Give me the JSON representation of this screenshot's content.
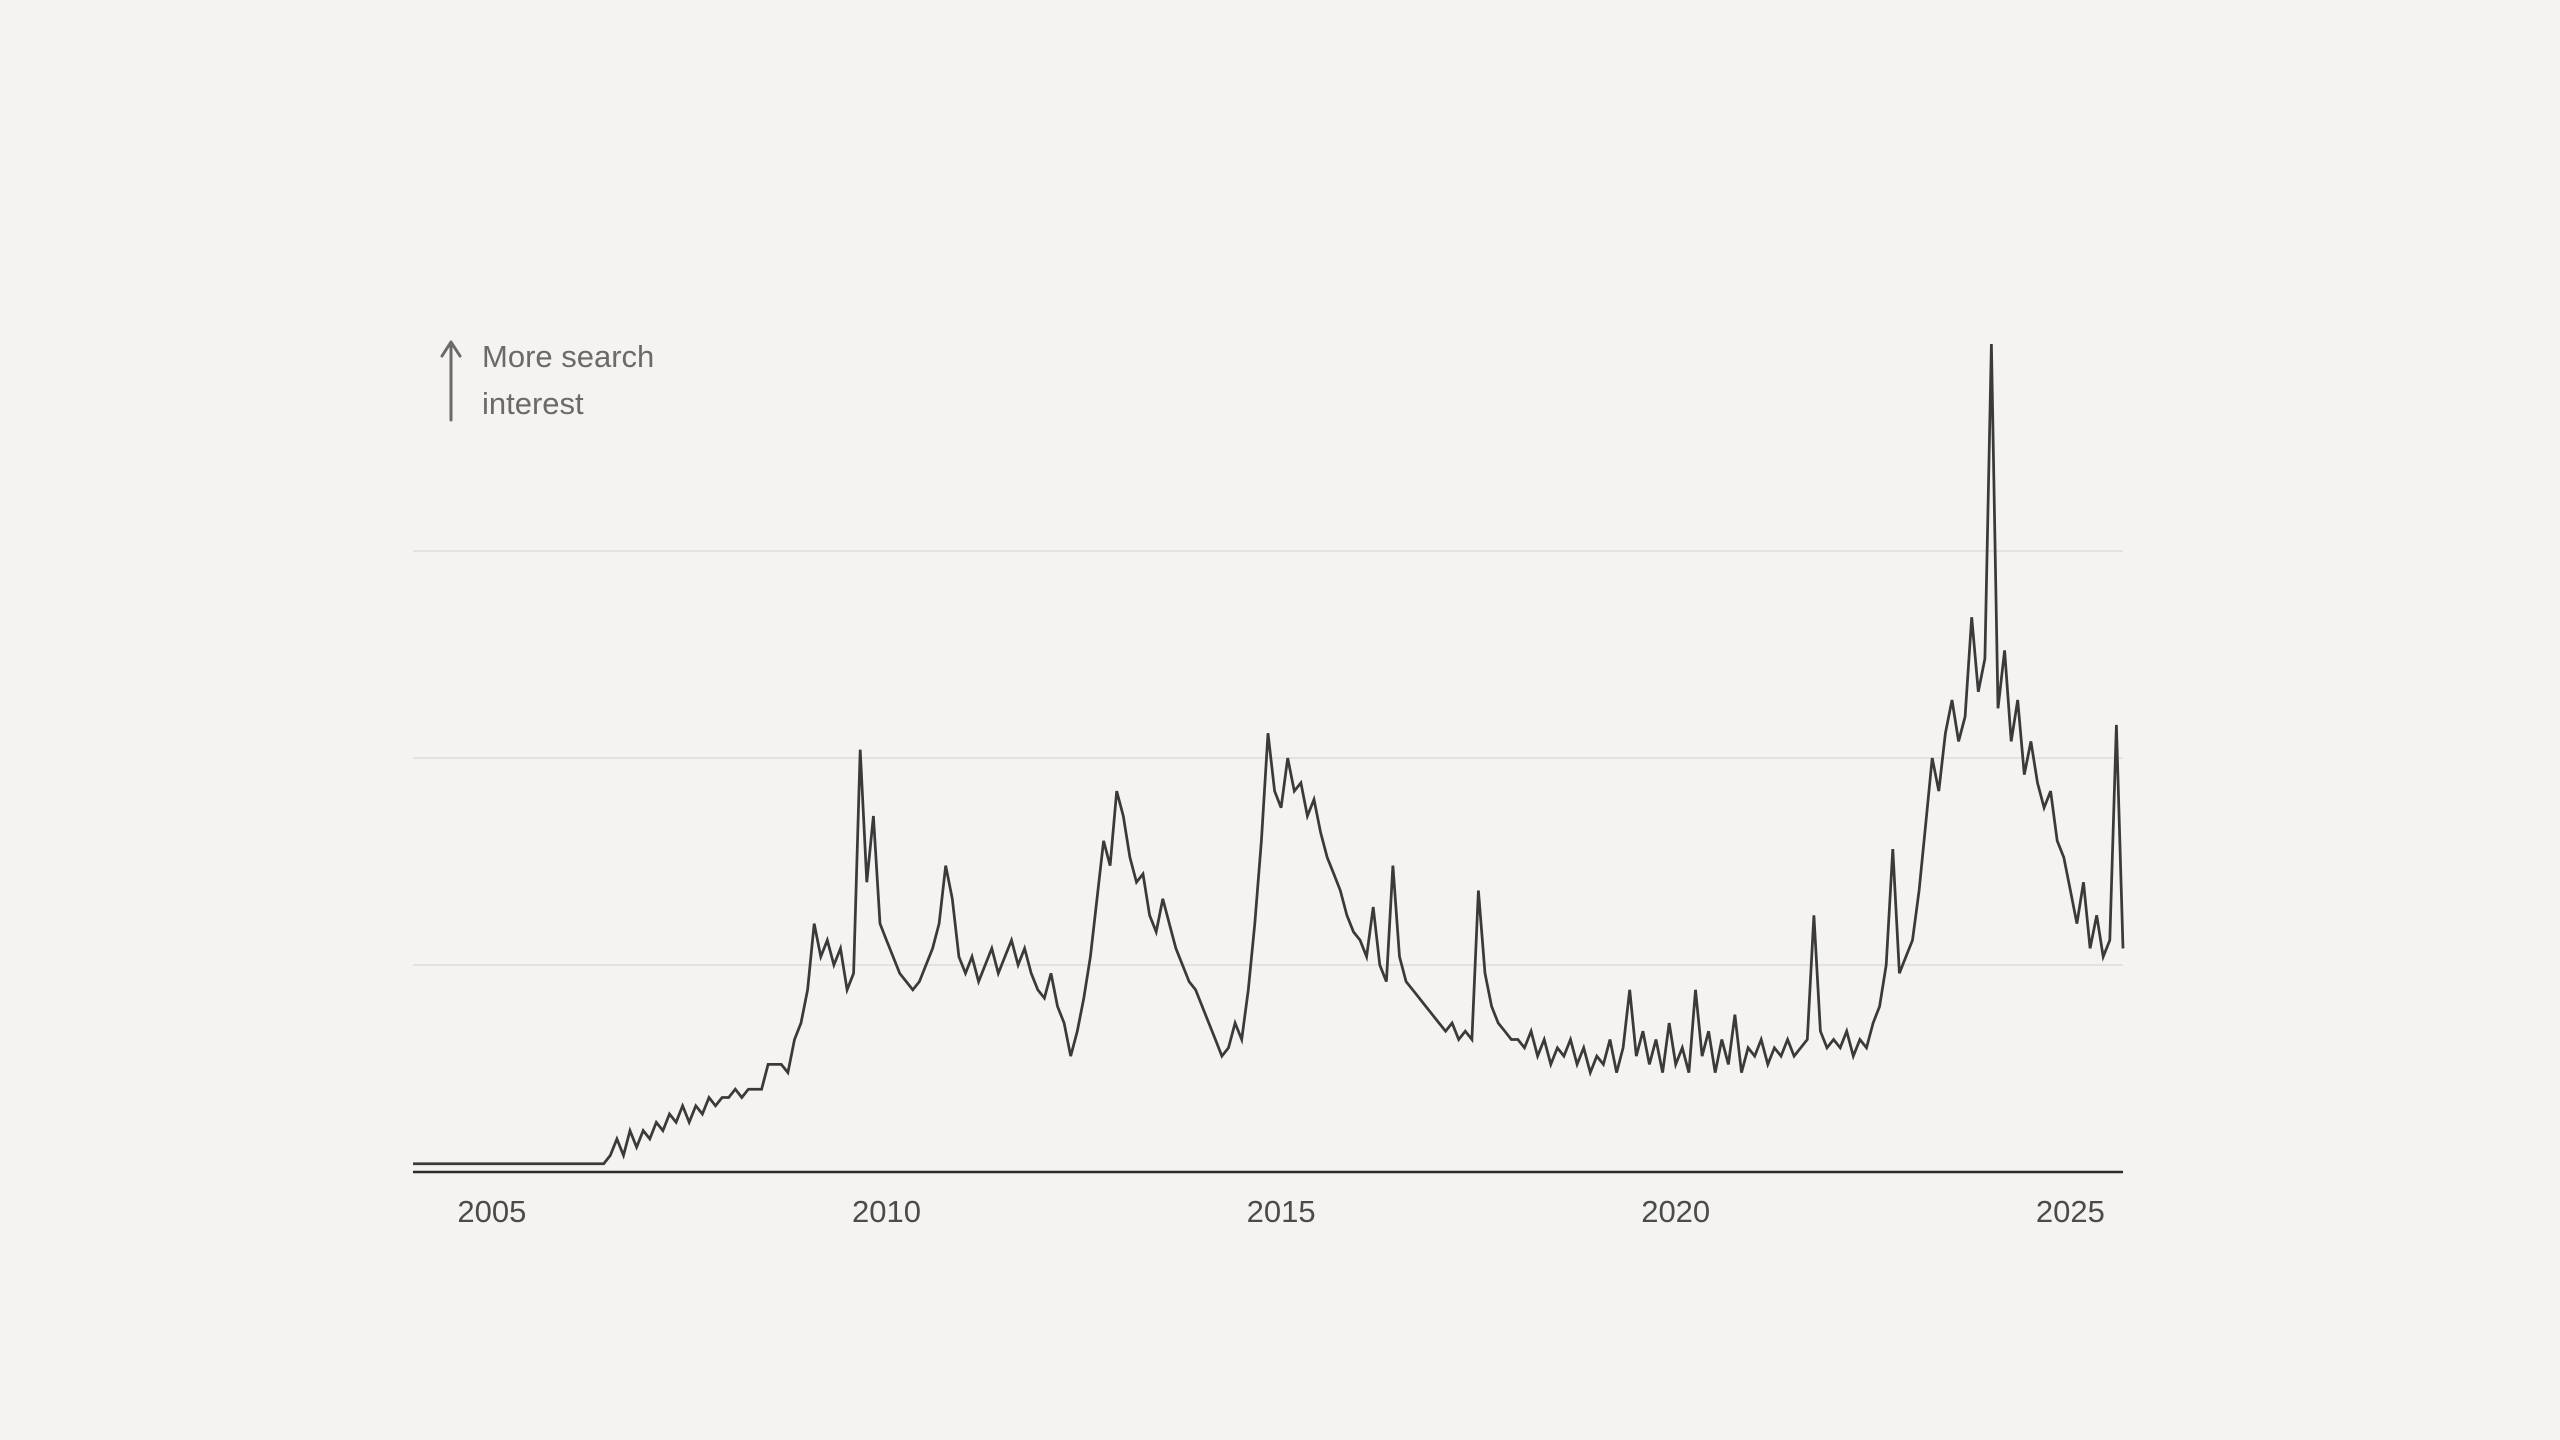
{
  "page": {
    "background": "#f4f3f1"
  },
  "annotation": {
    "icon": "up-arrow",
    "line1": "More search",
    "line2": "interest"
  },
  "colors": {
    "background": "#f4f3f1",
    "line": "#3a3a3a",
    "gridline": "#dedbd7",
    "axis": "#2c2c2c",
    "tick_label": "#4b4b4b",
    "annotation_text": "#6c6a67"
  },
  "chart_data": {
    "type": "line",
    "title": "",
    "xlabel": "",
    "ylabel": "More search interest",
    "legend": "none",
    "grid": "horizontal",
    "x_axis": {
      "min": 2004.0,
      "max": 2025.667,
      "ticks": [
        {
          "value": 2005,
          "label": "2005"
        },
        {
          "value": 2010,
          "label": "2010"
        },
        {
          "value": 2015,
          "label": "2015"
        },
        {
          "value": 2020,
          "label": "2020"
        },
        {
          "value": 2025,
          "label": "2025"
        }
      ]
    },
    "y_axis": {
      "min": 0,
      "max": 100,
      "gridlines": [
        25,
        50,
        75
      ],
      "tick_labels_visible": false
    },
    "series": [
      {
        "name": "search-interest",
        "frequency": "monthly",
        "start_year": 2004,
        "start_month": "2004-01",
        "points_per_year": 12,
        "values": [
          1,
          1,
          1,
          1,
          1,
          1,
          1,
          1,
          1,
          1,
          1,
          1,
          1,
          1,
          1,
          1,
          1,
          1,
          1,
          1,
          1,
          1,
          1,
          1,
          1,
          1,
          1,
          1,
          1,
          1,
          2,
          4,
          2,
          5,
          3,
          5,
          4,
          6,
          5,
          7,
          6,
          8,
          6,
          8,
          7,
          9,
          8,
          9,
          9,
          10,
          9,
          10,
          10,
          10,
          13,
          13,
          13,
          12,
          16,
          18,
          22,
          30,
          26,
          28,
          25,
          27,
          22,
          24,
          51,
          35,
          43,
          30,
          28,
          26,
          24,
          23,
          22,
          23,
          25,
          27,
          30,
          37,
          33,
          26,
          24,
          26,
          23,
          25,
          27,
          24,
          26,
          28,
          25,
          27,
          24,
          22,
          21,
          24,
          20,
          18,
          14,
          17,
          21,
          26,
          33,
          40,
          37,
          46,
          43,
          38,
          35,
          36,
          31,
          29,
          33,
          30,
          27,
          25,
          23,
          22,
          20,
          18,
          16,
          14,
          15,
          18,
          16,
          22,
          30,
          40,
          53,
          46,
          44,
          50,
          46,
          47,
          43,
          45,
          41,
          38,
          36,
          34,
          31,
          29,
          28,
          26,
          32,
          25,
          23,
          37,
          26,
          23,
          22,
          21,
          20,
          19,
          18,
          17,
          18,
          16,
          17,
          16,
          34,
          24,
          20,
          18,
          17,
          16,
          16,
          15,
          17,
          14,
          16,
          13,
          15,
          14,
          16,
          13,
          15,
          12,
          14,
          13,
          16,
          12,
          15,
          22,
          14,
          17,
          13,
          16,
          12,
          18,
          13,
          15,
          12,
          22,
          14,
          17,
          12,
          16,
          13,
          19,
          12,
          15,
          14,
          16,
          13,
          15,
          14,
          16,
          14,
          15,
          16,
          31,
          17,
          15,
          16,
          15,
          17,
          14,
          16,
          15,
          18,
          20,
          25,
          39,
          24,
          26,
          28,
          34,
          42,
          50,
          46,
          53,
          57,
          52,
          55,
          67,
          58,
          62,
          100,
          56,
          63,
          52,
          57,
          48,
          52,
          47,
          44,
          46,
          40,
          38,
          34,
          30,
          35,
          27,
          31,
          26,
          28,
          54,
          27
        ]
      }
    ]
  }
}
